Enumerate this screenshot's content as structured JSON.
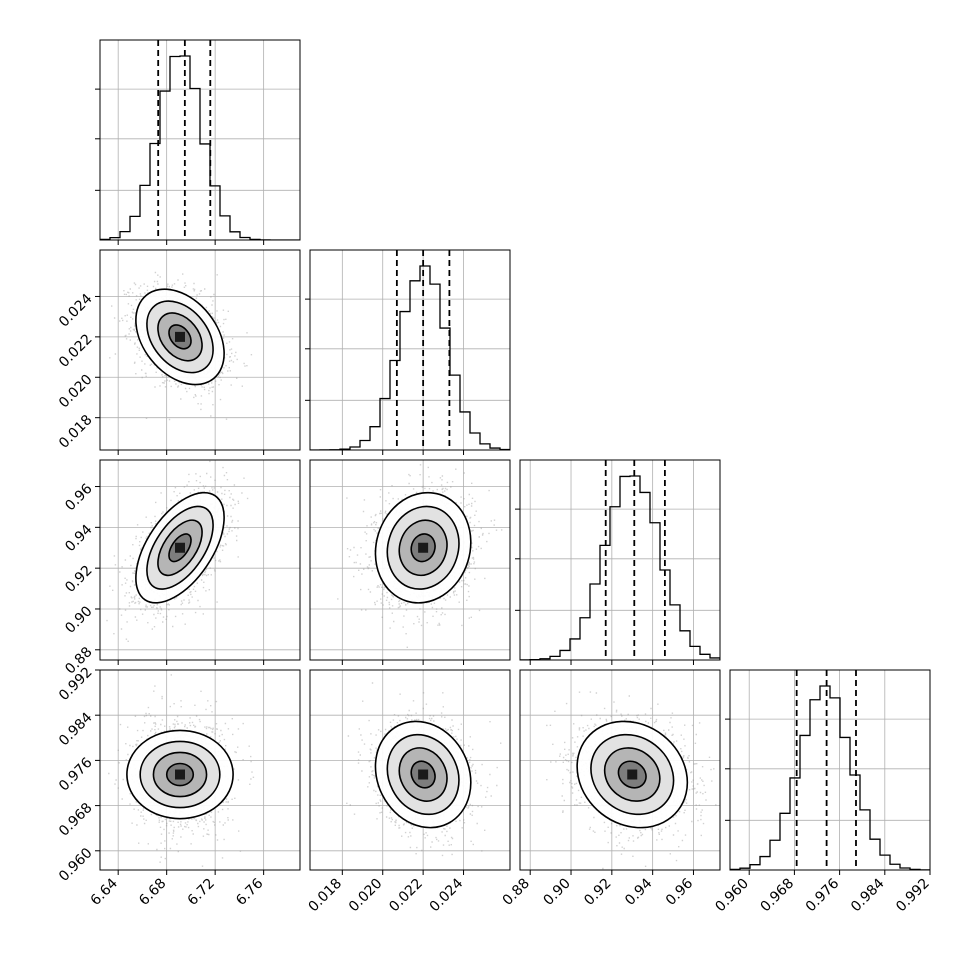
{
  "chart_data": {
    "type": "corner",
    "grid": true,
    "parameters": [
      {
        "range": [
          6.625,
          6.79
        ],
        "ticks": [
          "6.64",
          "6.68",
          "6.72",
          "6.76"
        ],
        "tick_values": [
          6.64,
          6.68,
          6.72,
          6.76
        ],
        "quantiles": [
          6.673,
          6.695,
          6.716
        ],
        "peak": 6.691,
        "sigma": 0.0182,
        "hist_bins": 20
      },
      {
        "range": [
          0.0164,
          0.0263
        ],
        "ticks": [
          "0.018",
          "0.020",
          "0.022",
          "0.024"
        ],
        "tick_values": [
          0.018,
          0.02,
          0.022,
          0.024
        ],
        "quantiles": [
          0.0207,
          0.022,
          0.0233
        ],
        "peak": 0.022,
        "sigma": 0.00118,
        "hist_bins": 20
      },
      {
        "range": [
          0.875,
          0.973
        ],
        "ticks": [
          "0.88",
          "0.90",
          "0.92",
          "0.94",
          "0.96"
        ],
        "tick_values": [
          0.88,
          0.9,
          0.92,
          0.94,
          0.96
        ],
        "quantiles": [
          0.917,
          0.931,
          0.946
        ],
        "peak": 0.93,
        "sigma": 0.0135,
        "hist_bins": 20
      },
      {
        "range": [
          0.9566,
          0.992
        ],
        "ticks": [
          "0.960",
          "0.968",
          "0.976",
          "0.984",
          "0.992"
        ],
        "tick_values": [
          0.96,
          0.968,
          0.976,
          0.984,
          0.992
        ],
        "quantiles": [
          0.9684,
          0.9737,
          0.9789
        ],
        "peak": 0.9735,
        "sigma": 0.0047,
        "hist_bins": 20
      }
    ],
    "correlations": {
      "1-0": -0.35,
      "2-0": 0.55,
      "2-1": 0.1,
      "3-0": 0.0,
      "3-1": -0.15,
      "3-2": -0.15
    },
    "contour_levels_sigma": [
      0.5,
      1.0,
      1.5,
      2.0
    ],
    "colors": {
      "line": "#000000",
      "points": "#9a9a9a",
      "grid": "#b0b0b0"
    }
  }
}
